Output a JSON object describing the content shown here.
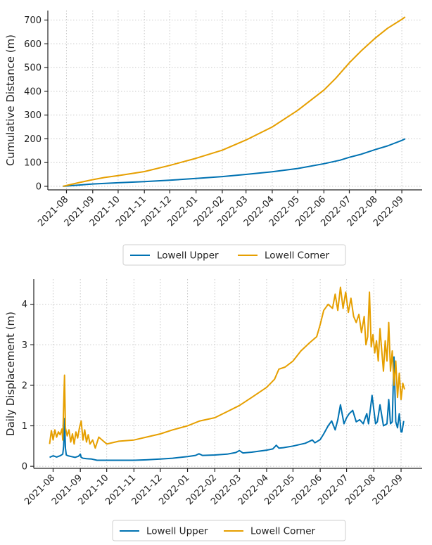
{
  "chart_data": [
    {
      "type": "line",
      "ylabel": "Cumulative Distance (m)",
      "xlabel": "",
      "ylim": [
        -15,
        740
      ],
      "yticks": [
        0,
        100,
        200,
        300,
        400,
        500,
        600,
        700
      ],
      "x_ticks": [
        "2021-08",
        "2021-09",
        "2021-10",
        "2021-11",
        "2021-12",
        "2022-01",
        "2022-02",
        "2022-03",
        "2022-04",
        "2022-05",
        "2022-06",
        "2022-07",
        "2022-08",
        "2022-09"
      ],
      "grid": true,
      "legend_position": "below",
      "series": [
        {
          "name": "Lowell Upper",
          "color": "#0072b2",
          "x": [
            "2021-07-28",
            "2021-08-15",
            "2021-09-01",
            "2021-10-01",
            "2021-11-01",
            "2021-12-01",
            "2022-01-01",
            "2022-02-01",
            "2022-03-01",
            "2022-04-01",
            "2022-05-01",
            "2022-06-01",
            "2022-06-20",
            "2022-07-01",
            "2022-07-15",
            "2022-08-01",
            "2022-08-15",
            "2022-09-01",
            "2022-09-05"
          ],
          "values": [
            0,
            5,
            10,
            15,
            20,
            26,
            33,
            41,
            50,
            61,
            75,
            95,
            110,
            122,
            135,
            155,
            170,
            193,
            200
          ]
        },
        {
          "name": "Lowell Corner",
          "color": "#e69f00",
          "x": [
            "2021-07-28",
            "2021-08-15",
            "2021-09-01",
            "2021-09-15",
            "2021-10-01",
            "2021-11-01",
            "2021-12-01",
            "2022-01-01",
            "2022-02-01",
            "2022-03-01",
            "2022-04-01",
            "2022-05-01",
            "2022-06-01",
            "2022-06-15",
            "2022-07-01",
            "2022-07-15",
            "2022-08-01",
            "2022-08-15",
            "2022-09-01",
            "2022-09-05"
          ],
          "values": [
            0,
            15,
            28,
            37,
            45,
            62,
            88,
            118,
            152,
            195,
            250,
            320,
            405,
            455,
            520,
            570,
            625,
            665,
            703,
            713
          ]
        }
      ]
    },
    {
      "type": "line",
      "ylabel": "Daily Displacement (m)",
      "xlabel": "",
      "ylim": [
        -0.05,
        4.62
      ],
      "yticks": [
        0,
        1,
        2,
        3,
        4
      ],
      "x_ticks": [
        "2021-08",
        "2021-09",
        "2021-10",
        "2021-11",
        "2021-12",
        "2022-01",
        "2022-02",
        "2022-03",
        "2022-04",
        "2022-05",
        "2022-06",
        "2022-07",
        "2022-08",
        "2022-09"
      ],
      "grid": true,
      "legend_position": "below",
      "series": [
        {
          "name": "Lowell Upper",
          "color": "#0072b2",
          "x": [
            "2021-07-28",
            "2021-08-01",
            "2021-08-05",
            "2021-08-09",
            "2021-08-12",
            "2021-08-13",
            "2021-08-14",
            "2021-08-15",
            "2021-08-16",
            "2021-08-18",
            "2021-08-22",
            "2021-08-26",
            "2021-08-30",
            "2021-09-01",
            "2021-09-02",
            "2021-09-04",
            "2021-09-08",
            "2021-09-14",
            "2021-09-20",
            "2021-10-01",
            "2021-10-15",
            "2021-11-01",
            "2021-11-15",
            "2021-12-01",
            "2021-12-15",
            "2022-01-01",
            "2022-01-10",
            "2022-01-14",
            "2022-01-18",
            "2022-02-01",
            "2022-02-15",
            "2022-02-25",
            "2022-03-01",
            "2022-03-05",
            "2022-03-15",
            "2022-04-01",
            "2022-04-08",
            "2022-04-12",
            "2022-04-15",
            "2022-04-20",
            "2022-05-01",
            "2022-05-15",
            "2022-05-23",
            "2022-05-26",
            "2022-06-01",
            "2022-06-05",
            "2022-06-10",
            "2022-06-14",
            "2022-06-18",
            "2022-06-21",
            "2022-06-24",
            "2022-06-28",
            "2022-07-01",
            "2022-07-04",
            "2022-07-08",
            "2022-07-12",
            "2022-07-16",
            "2022-07-20",
            "2022-07-22",
            "2022-07-24",
            "2022-07-26",
            "2022-07-30",
            "2022-08-03",
            "2022-08-05",
            "2022-08-08",
            "2022-08-12",
            "2022-08-16",
            "2022-08-18",
            "2022-08-20",
            "2022-08-22",
            "2022-08-24",
            "2022-08-26",
            "2022-08-28",
            "2022-08-30",
            "2022-09-01",
            "2022-09-02",
            "2022-09-04"
          ],
          "values": [
            0.22,
            0.26,
            0.23,
            0.26,
            0.3,
            0.5,
            1.18,
            0.45,
            0.28,
            0.26,
            0.24,
            0.22,
            0.25,
            0.3,
            0.22,
            0.2,
            0.19,
            0.18,
            0.15,
            0.15,
            0.15,
            0.15,
            0.16,
            0.18,
            0.2,
            0.24,
            0.27,
            0.31,
            0.27,
            0.28,
            0.3,
            0.34,
            0.39,
            0.33,
            0.35,
            0.4,
            0.43,
            0.52,
            0.45,
            0.46,
            0.5,
            0.57,
            0.65,
            0.58,
            0.66,
            0.8,
            1.0,
            1.12,
            0.9,
            1.15,
            1.52,
            1.05,
            1.2,
            1.3,
            1.38,
            1.1,
            1.15,
            1.05,
            1.18,
            1.3,
            1.05,
            1.75,
            1.05,
            1.1,
            1.52,
            1.0,
            1.05,
            1.65,
            1.05,
            1.1,
            2.7,
            1.1,
            0.95,
            1.3,
            0.85,
            0.85,
            1.12
          ]
        },
        {
          "name": "Lowell Corner",
          "color": "#e69f00",
          "x": [
            "2021-07-28",
            "2021-07-30",
            "2021-08-01",
            "2021-08-03",
            "2021-08-05",
            "2021-08-07",
            "2021-08-09",
            "2021-08-11",
            "2021-08-12",
            "2021-08-13",
            "2021-08-14",
            "2021-08-15",
            "2021-08-17",
            "2021-08-19",
            "2021-08-21",
            "2021-08-23",
            "2021-08-25",
            "2021-08-27",
            "2021-08-29",
            "2021-08-31",
            "2021-09-02",
            "2021-09-04",
            "2021-09-06",
            "2021-09-08",
            "2021-09-10",
            "2021-09-12",
            "2021-09-15",
            "2021-09-18",
            "2021-09-22",
            "2021-10-01",
            "2021-10-15",
            "2021-11-01",
            "2021-11-15",
            "2021-12-01",
            "2021-12-15",
            "2022-01-01",
            "2022-01-15",
            "2022-02-01",
            "2022-02-15",
            "2022-03-01",
            "2022-03-15",
            "2022-04-01",
            "2022-04-10",
            "2022-04-15",
            "2022-04-22",
            "2022-05-01",
            "2022-05-10",
            "2022-05-20",
            "2022-05-28",
            "2022-06-01",
            "2022-06-05",
            "2022-06-10",
            "2022-06-15",
            "2022-06-18",
            "2022-06-21",
            "2022-06-24",
            "2022-06-27",
            "2022-06-30",
            "2022-07-03",
            "2022-07-06",
            "2022-07-09",
            "2022-07-12",
            "2022-07-15",
            "2022-07-18",
            "2022-07-21",
            "2022-07-23",
            "2022-07-25",
            "2022-07-27",
            "2022-07-29",
            "2022-07-31",
            "2022-08-02",
            "2022-08-04",
            "2022-08-06",
            "2022-08-08",
            "2022-08-10",
            "2022-08-12",
            "2022-08-14",
            "2022-08-16",
            "2022-08-18",
            "2022-08-20",
            "2022-08-22",
            "2022-08-24",
            "2022-08-26",
            "2022-08-28",
            "2022-08-30",
            "2022-09-01",
            "2022-09-03",
            "2022-09-05"
          ],
          "values": [
            0.55,
            0.88,
            0.65,
            0.9,
            0.72,
            0.85,
            0.78,
            0.92,
            0.65,
            1.5,
            2.25,
            0.95,
            0.75,
            0.9,
            0.6,
            0.8,
            0.55,
            0.85,
            0.7,
            0.95,
            1.12,
            0.65,
            0.9,
            0.6,
            0.78,
            0.55,
            0.65,
            0.45,
            0.72,
            0.55,
            0.62,
            0.65,
            0.72,
            0.8,
            0.9,
            1.0,
            1.12,
            1.2,
            1.35,
            1.5,
            1.7,
            1.95,
            2.15,
            2.4,
            2.45,
            2.6,
            2.85,
            3.05,
            3.2,
            3.5,
            3.85,
            4.0,
            3.9,
            4.25,
            3.85,
            4.42,
            3.9,
            4.3,
            3.8,
            4.15,
            3.7,
            3.55,
            3.75,
            3.3,
            3.7,
            3.0,
            3.2,
            4.3,
            2.95,
            3.25,
            2.8,
            3.1,
            2.6,
            3.4,
            2.85,
            2.35,
            3.1,
            2.6,
            3.55,
            2.35,
            2.85,
            2.0,
            2.6,
            1.7,
            2.3,
            1.65,
            2.05,
            1.9
          ]
        }
      ]
    }
  ]
}
